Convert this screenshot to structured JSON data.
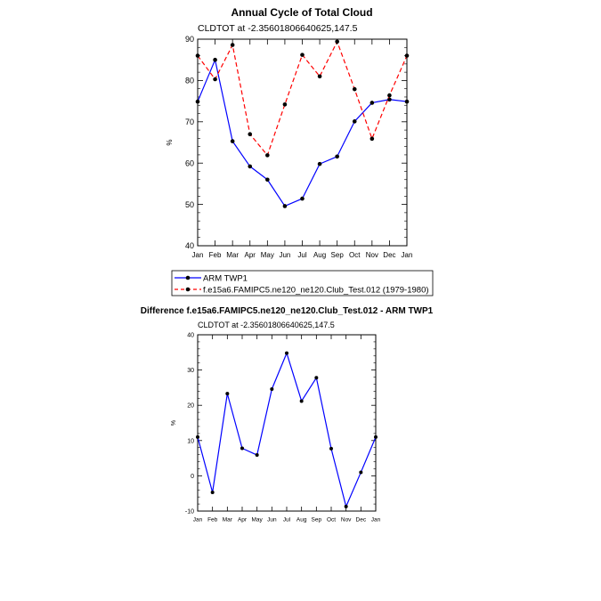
{
  "chart_data": [
    {
      "type": "line",
      "title": "Annual Cycle of Total Cloud",
      "subtitle": "CLDTOT at -2.35601806640625,147.5",
      "ylabel": "%",
      "xlabel": "",
      "ylim": [
        40,
        90
      ],
      "yticks": [
        40,
        50,
        60,
        70,
        80,
        90
      ],
      "categories": [
        "Jan",
        "Feb",
        "Mar",
        "Apr",
        "May",
        "Jun",
        "Jul",
        "Aug",
        "Sep",
        "Oct",
        "Nov",
        "Dec",
        "Jan"
      ],
      "series": [
        {
          "name": "ARM TWP1",
          "color": "#0000ff",
          "dash": "solid",
          "values": [
            74.9,
            85.0,
            65.3,
            59.2,
            56.0,
            49.6,
            51.4,
            59.8,
            61.6,
            70.1,
            74.6,
            75.4,
            74.9
          ]
        },
        {
          "name": "f.e15a6.FAMIPC5.ne120_ne120.Club_Test.012 (1979-1980)",
          "color": "#ff0000",
          "dash": "dashed",
          "values": [
            86.0,
            80.3,
            88.6,
            67.0,
            61.9,
            74.2,
            86.2,
            81.0,
            89.4,
            77.9,
            65.9,
            76.4,
            86.0
          ]
        }
      ],
      "legend_position": "bottom"
    },
    {
      "type": "line",
      "title": "Difference f.e15a6.FAMIPC5.ne120_ne120.Club_Test.012 - ARM TWP1",
      "subtitle": "CLDTOT at -2.35601806640625,147.5",
      "ylabel": "%",
      "xlabel": "",
      "ylim": [
        -10,
        40
      ],
      "yticks": [
        -10,
        0,
        10,
        20,
        30,
        40
      ],
      "categories": [
        "Jan",
        "Feb",
        "Mar",
        "Apr",
        "May",
        "Jun",
        "Jul",
        "Aug",
        "Sep",
        "Oct",
        "Nov",
        "Dec",
        "Jan"
      ],
      "series": [
        {
          "name": "Difference",
          "color": "#0000ff",
          "dash": "solid",
          "values": [
            11.0,
            -4.7,
            23.3,
            7.8,
            5.9,
            24.6,
            34.8,
            21.2,
            27.8,
            7.7,
            -8.7,
            1.0,
            11.0
          ]
        }
      ]
    }
  ]
}
